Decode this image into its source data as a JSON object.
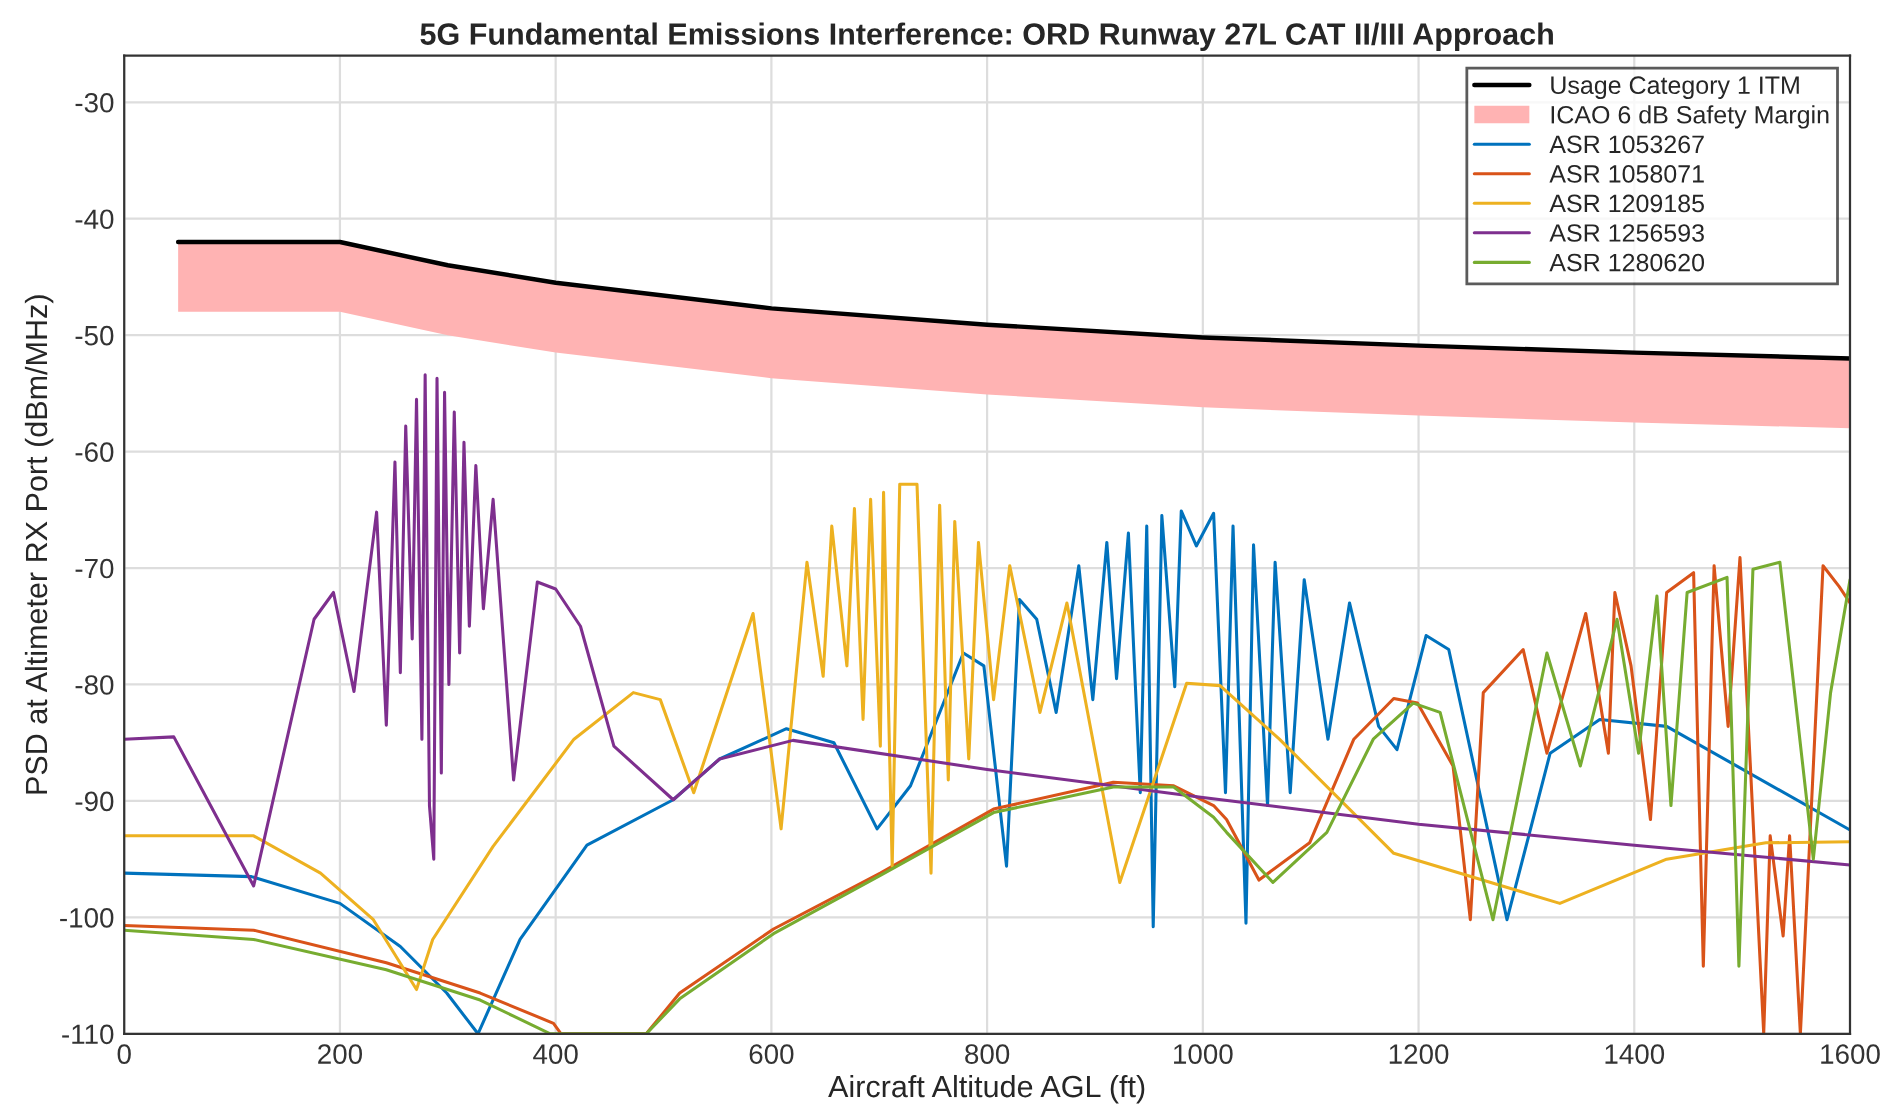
{
  "chart_data": {
    "type": "line",
    "title": "5G Fundamental Emissions Interference: ORD Runway 27L CAT II/III Approach",
    "xlabel": "Aircraft Altitude AGL (ft)",
    "ylabel": "PSD at Altimeter RX Port (dBm/MHz)",
    "xlim": [
      0,
      1600
    ],
    "ylim": [
      -110,
      -26
    ],
    "xticks": [
      0,
      200,
      400,
      600,
      800,
      1000,
      1200,
      1400,
      1600
    ],
    "yticks": [
      -110,
      -100,
      -90,
      -80,
      -70,
      -60,
      -50,
      -40,
      -30
    ],
    "grid": true,
    "legend": "top right",
    "line_style": "solid",
    "marker": "none",
    "series": [
      {
        "name": "Usage Category 1 ITM",
        "color": "#000000",
        "x": [
          50,
          200,
          300,
          400,
          600,
          800,
          1000,
          1200,
          1400,
          1600
        ],
        "values": [
          -42,
          -42,
          -44,
          -45.5,
          -47.7,
          -49.1,
          -50.2,
          -50.9,
          -51.5,
          -52
        ]
      },
      {
        "name": "ICAO 6 dB Safety Margin",
        "type": "area",
        "color": "#ffb3b3",
        "x": [
          50,
          200,
          300,
          400,
          600,
          800,
          1000,
          1200,
          1400,
          1600
        ],
        "values": [
          -48,
          -48,
          -50,
          -51.5,
          -53.7,
          -55.1,
          -56.2,
          -56.9,
          -57.5,
          -58
        ]
      },
      {
        "name": "ASR 1053267",
        "color": "#0072bd",
        "x": [
          0,
          118,
          200,
          256,
          299,
          328,
          367,
          429,
          509,
          552,
          614,
          658,
          698,
          729,
          778,
          797,
          818,
          830,
          846,
          864,
          885,
          898,
          911,
          920,
          931,
          942,
          948,
          954,
          962,
          974,
          980,
          994,
          1010,
          1021,
          1028,
          1040,
          1047,
          1060,
          1067,
          1081,
          1094,
          1116,
          1136,
          1163,
          1180,
          1207,
          1228,
          1282,
          1322,
          1368,
          1430,
          1600
        ],
        "values": [
          -96.2,
          -96.5,
          -98.8,
          -102.5,
          -106.5,
          -110,
          -101.9,
          -93.8,
          -89.9,
          -86.4,
          -83.8,
          -85,
          -92.4,
          -88.7,
          -77.3,
          -78.4,
          -95.6,
          -72.7,
          -74.4,
          -82.4,
          -69.8,
          -81.3,
          -67.8,
          -79.5,
          -67,
          -89.3,
          -66.4,
          -100.8,
          -65.5,
          -80.2,
          -65.1,
          -68.1,
          -65.3,
          -89.3,
          -66.4,
          -100.5,
          -68,
          -90.4,
          -69.5,
          -89.3,
          -71,
          -84.7,
          -73,
          -83.6,
          -85.6,
          -75.8,
          -77,
          -100.2,
          -85.9,
          -83,
          -83.6,
          -92.5
        ]
      },
      {
        "name": "ASR 1058071",
        "color": "#d95319",
        "x": [
          0,
          120,
          243,
          330,
          398,
          405,
          484,
          515,
          602,
          701,
          806,
          917,
          973,
          1010,
          1022,
          1052,
          1099,
          1140,
          1177,
          1199,
          1232,
          1248,
          1260,
          1297,
          1319,
          1355,
          1376,
          1382,
          1397,
          1415,
          1430,
          1455,
          1464,
          1474,
          1487,
          1498,
          1520,
          1526,
          1538,
          1544,
          1554,
          1575,
          1590,
          1600
        ],
        "values": [
          -100.7,
          -101.1,
          -103.9,
          -106.5,
          -109.1,
          -110,
          -110,
          -106.5,
          -101,
          -96.2,
          -90.7,
          -88.4,
          -88.7,
          -90.4,
          -91.6,
          -96.8,
          -93.6,
          -84.7,
          -81.2,
          -81.6,
          -87,
          -100.2,
          -80.7,
          -77,
          -85.9,
          -73.9,
          -85.9,
          -72.1,
          -78.4,
          -91.6,
          -72.1,
          -70.4,
          -104.2,
          -69.8,
          -83.6,
          -69.1,
          -110,
          -93,
          -101.6,
          -93,
          -110,
          -69.8,
          -71.6,
          -73
        ]
      },
      {
        "name": "ASR 1209185",
        "color": "#edb120",
        "x": [
          0,
          120,
          182,
          231,
          271,
          286,
          342,
          417,
          472,
          497,
          528,
          583,
          609,
          633,
          648,
          656,
          670,
          677,
          685,
          692,
          701,
          704,
          712,
          719,
          735,
          748,
          756,
          764,
          770,
          783,
          792,
          806,
          821,
          849,
          874,
          923,
          985,
          1016,
          1071,
          1177,
          1331,
          1430,
          1522,
          1600
        ],
        "values": [
          -93,
          -93,
          -96.2,
          -100.2,
          -106.2,
          -101.9,
          -93.9,
          -84.7,
          -80.7,
          -81.3,
          -89.3,
          -73.9,
          -92.4,
          -69.5,
          -79.3,
          -66.4,
          -78.4,
          -64.9,
          -83,
          -64.1,
          -85.3,
          -63.5,
          -95.6,
          -62.8,
          -62.8,
          -96.2,
          -64.6,
          -88.2,
          -66,
          -86.4,
          -67.8,
          -81.3,
          -69.8,
          -82.4,
          -73,
          -97,
          -79.9,
          -80.1,
          -84.7,
          -94.5,
          -98.8,
          -95,
          -93.6,
          -93.5
        ]
      },
      {
        "name": "ASR 1256593",
        "color": "#7e2f8e",
        "x": [
          0,
          46,
          120,
          176,
          194,
          213,
          234,
          243,
          251,
          256,
          261,
          267,
          271,
          276,
          279,
          283,
          287,
          290,
          294,
          297,
          301,
          306,
          311,
          315,
          320,
          326,
          333,
          342,
          361,
          383,
          400,
          423,
          454,
          509,
          552,
          620,
          800,
          1000,
          1200,
          1400,
          1600
        ],
        "values": [
          -84.7,
          -84.5,
          -97.3,
          -74.4,
          -72.1,
          -80.6,
          -65.2,
          -83.5,
          -60.9,
          -79,
          -57.8,
          -76.1,
          -55.5,
          -84.7,
          -53.4,
          -90.4,
          -95,
          -53.7,
          -87.6,
          -54.9,
          -80,
          -56.6,
          -77.3,
          -59.2,
          -75,
          -61.2,
          -73.5,
          -64.1,
          -88.2,
          -71.2,
          -71.8,
          -75,
          -85.3,
          -89.9,
          -86.4,
          -84.8,
          -87.3,
          -89.7,
          -92,
          -93.8,
          -95.5
        ]
      },
      {
        "name": "ASR 1280620",
        "color": "#77ac30",
        "x": [
          0,
          120,
          243,
          330,
          395,
          484,
          515,
          602,
          701,
          806,
          917,
          973,
          1010,
          1022,
          1065,
          1115,
          1158,
          1195,
          1220,
          1269,
          1319,
          1350,
          1384,
          1404,
          1421,
          1434,
          1449,
          1486,
          1497,
          1510,
          1535,
          1566,
          1582,
          1600
        ],
        "values": [
          -101.1,
          -101.9,
          -104.5,
          -107.1,
          -110,
          -110,
          -107,
          -101.4,
          -96.4,
          -91,
          -88.8,
          -88.8,
          -91.4,
          -92.7,
          -97,
          -92.7,
          -84.7,
          -81.6,
          -82.4,
          -100.2,
          -77.3,
          -87,
          -74.4,
          -85.9,
          -72.4,
          -90.4,
          -72.1,
          -70.8,
          -104.2,
          -70.1,
          -69.5,
          -95,
          -80.7,
          -71
        ]
      }
    ]
  }
}
